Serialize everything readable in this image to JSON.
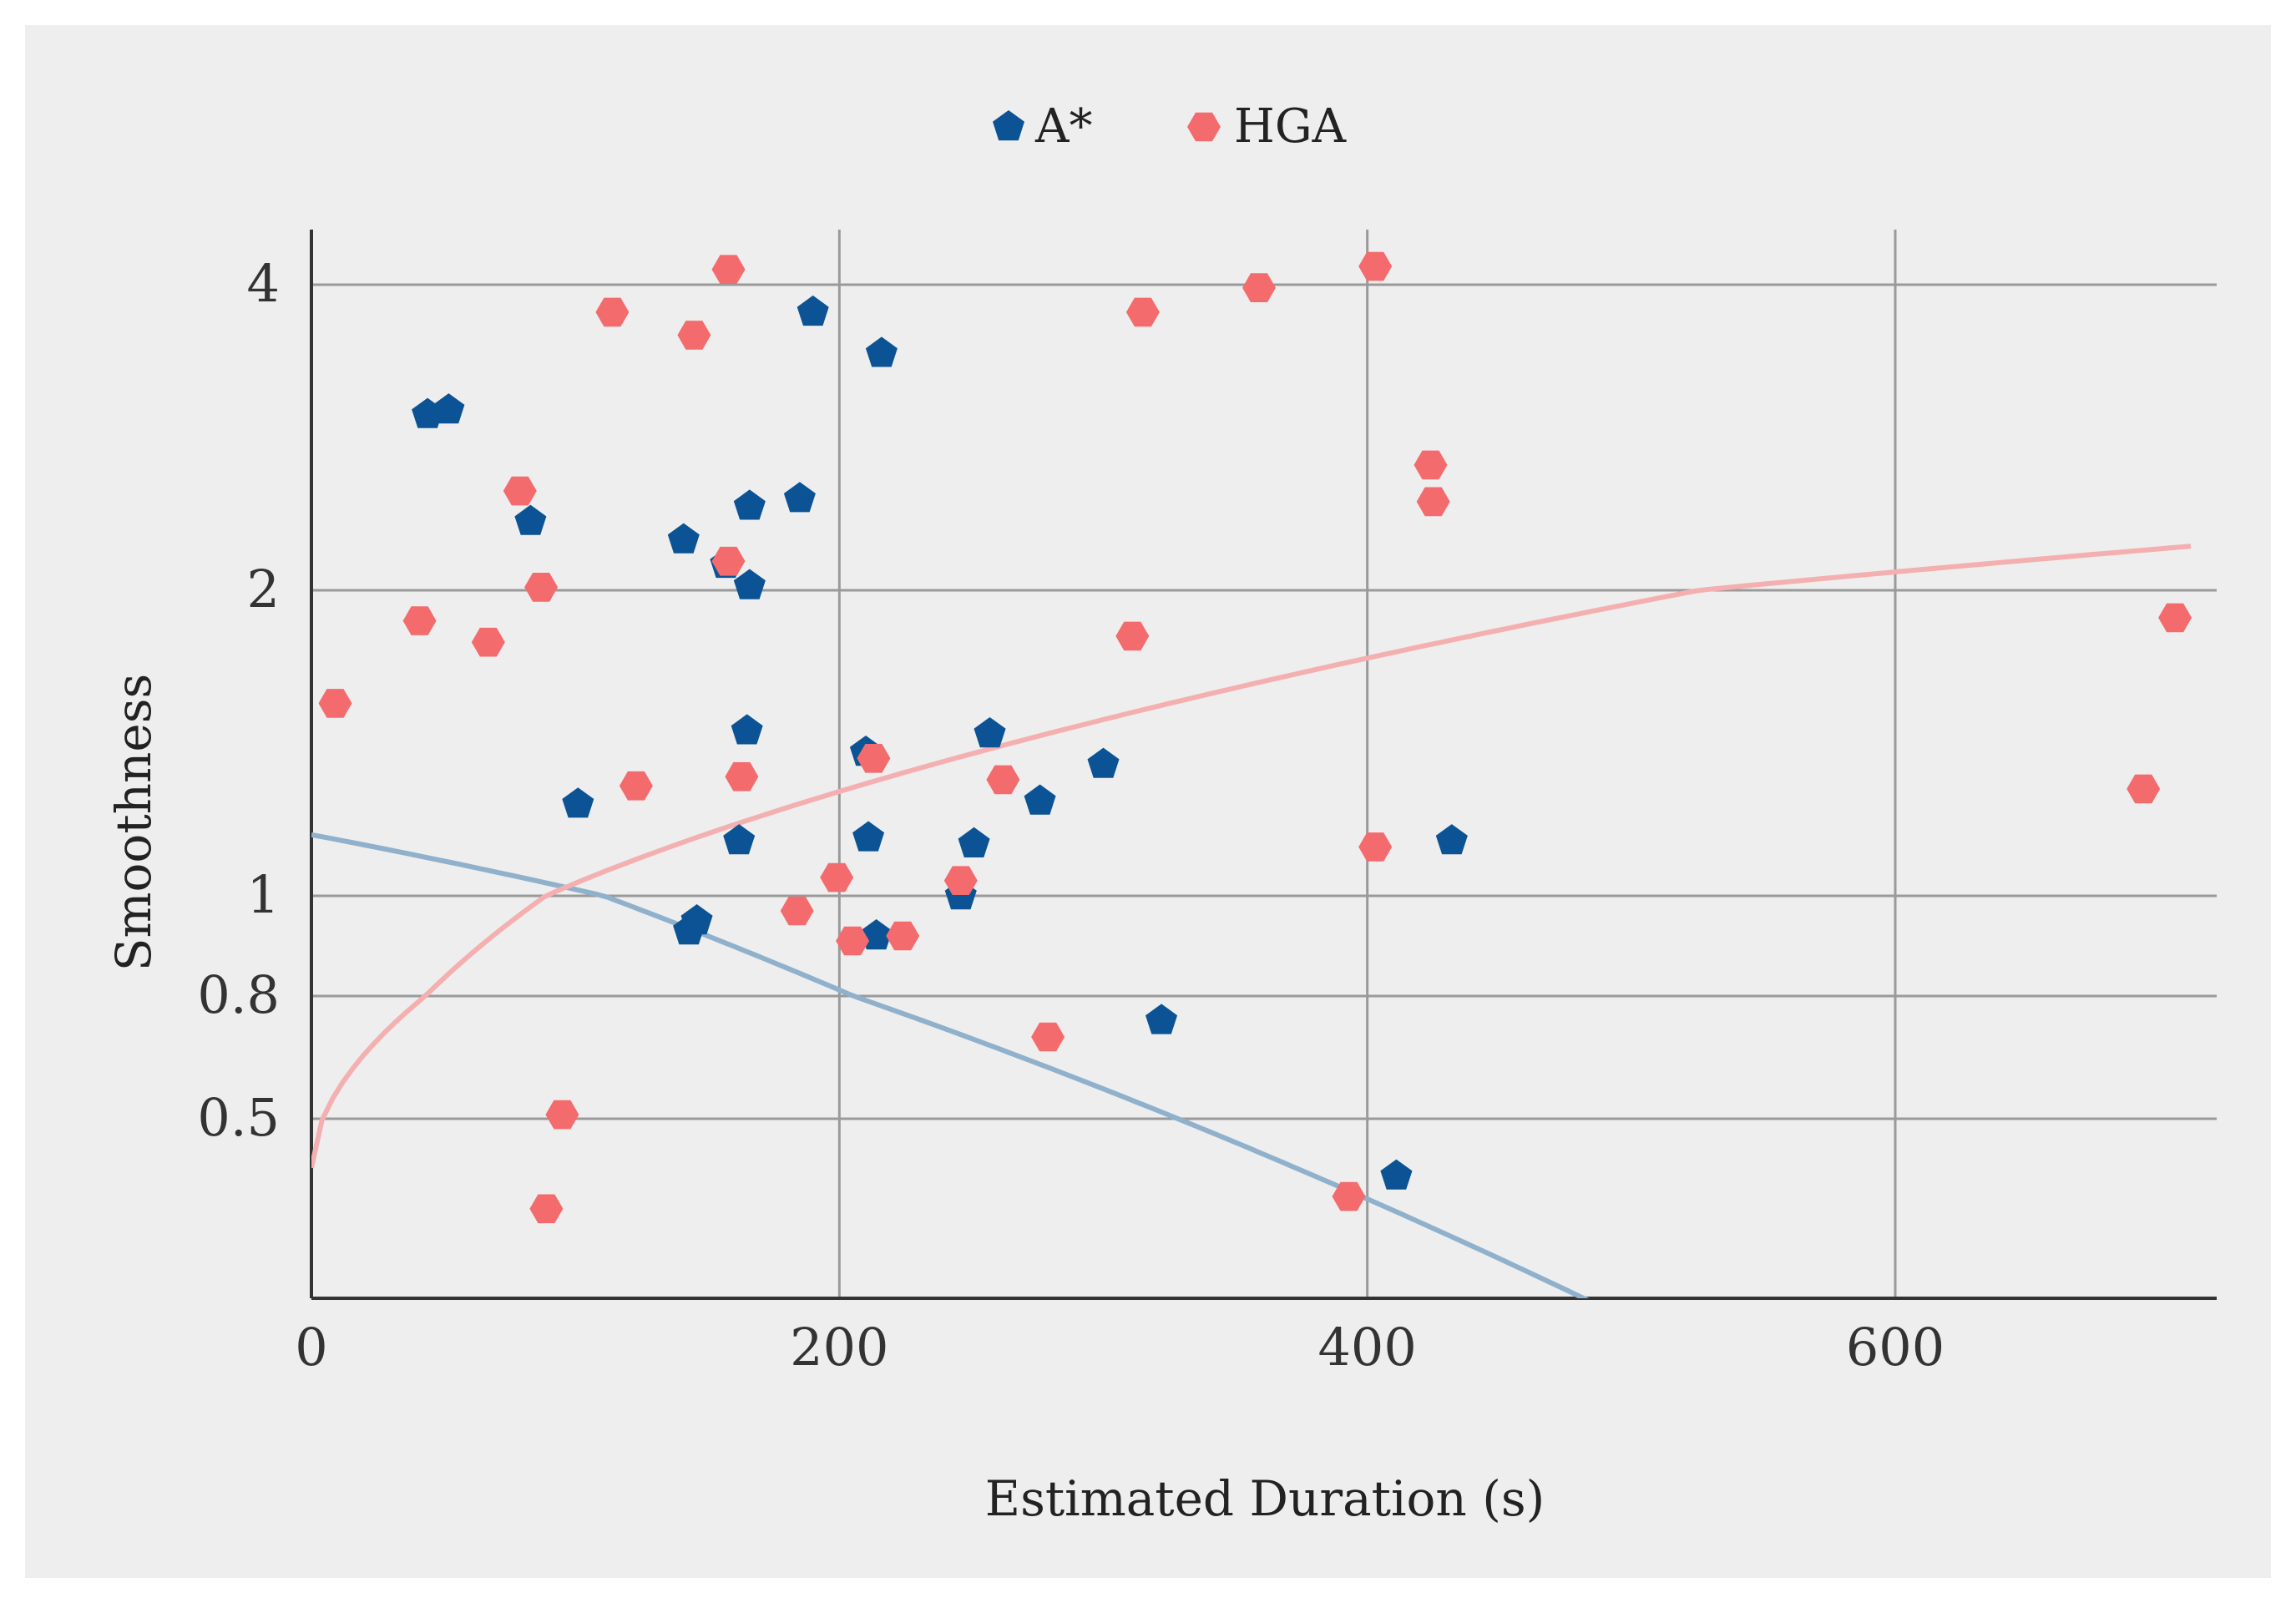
{
  "chart_data": {
    "type": "scatter",
    "xlabel": "Estimated Duration (s)",
    "ylabel": "Smoothness",
    "x_ticks": [
      "0",
      "200",
      "400",
      "600"
    ],
    "y_ticks": [
      "0.5",
      "0.8",
      "1",
      "2",
      "4"
    ],
    "y_tick_values": [
      0.5,
      0.8,
      1,
      2,
      4
    ],
    "xlim": [
      0,
      716
    ],
    "grid": true,
    "legend_position": "top-center",
    "series": [
      {
        "name": "A*",
        "marker": "pentagon",
        "color": "#0b5394",
        "points": [
          [
            44,
            3.15
          ],
          [
            52,
            3.18
          ],
          [
            190,
            3.82
          ],
          [
            216,
            3.55
          ],
          [
            83,
            2.45
          ],
          [
            141,
            2.33
          ],
          [
            166,
            2.55
          ],
          [
            185,
            2.6
          ],
          [
            157,
            2.17
          ],
          [
            166,
            2.03
          ],
          [
            165,
            1.54
          ],
          [
            210,
            1.47
          ],
          [
            257,
            1.53
          ],
          [
            300,
            1.43
          ],
          [
            101,
            1.3
          ],
          [
            276,
            1.31
          ],
          [
            162,
            1.18
          ],
          [
            211,
            1.19
          ],
          [
            251,
            1.17
          ],
          [
            432,
            1.18
          ],
          [
            143,
            0.93
          ],
          [
            146,
            0.95
          ],
          [
            214,
            0.92
          ],
          [
            246,
            1.0
          ],
          [
            322,
            0.74
          ],
          [
            411,
            0.36
          ]
        ]
      },
      {
        "name": "HGA",
        "marker": "hexagon",
        "color": "#f46b6d",
        "points": [
          [
            158,
            4.1
          ],
          [
            403,
            4.12
          ],
          [
            114,
            3.82
          ],
          [
            145,
            3.67
          ],
          [
            315,
            3.82
          ],
          [
            359,
            3.98
          ],
          [
            79,
            2.65
          ],
          [
            87,
            2.02
          ],
          [
            158,
            2.19
          ],
          [
            424,
            2.82
          ],
          [
            425,
            2.58
          ],
          [
            41,
            1.9
          ],
          [
            67,
            1.83
          ],
          [
            9,
            1.63
          ],
          [
            213,
            1.45
          ],
          [
            123,
            1.36
          ],
          [
            163,
            1.39
          ],
          [
            262,
            1.38
          ],
          [
            311,
            1.85
          ],
          [
            706,
            1.91
          ],
          [
            694,
            1.35
          ],
          [
            199,
            1.06
          ],
          [
            184,
            0.97
          ],
          [
            246,
            1.05
          ],
          [
            205,
            0.91
          ],
          [
            224,
            0.92
          ],
          [
            403,
            1.16
          ],
          [
            279,
            0.7
          ],
          [
            95,
            0.51
          ],
          [
            89,
            0.28
          ],
          [
            393,
            0.31
          ]
        ]
      }
    ],
    "trendlines": [
      {
        "series": "A*",
        "type": "polynomial",
        "color": "#8fb1cc"
      },
      {
        "series": "HGA",
        "type": "power",
        "color": "#f4b0b0"
      }
    ]
  }
}
